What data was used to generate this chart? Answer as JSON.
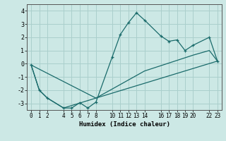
{
  "xlabel": "Humidex (Indice chaleur)",
  "bg_color": "#cce8e5",
  "line_color": "#1a6b6b",
  "grid_color": "#aacfcc",
  "ylim": [
    -3.5,
    4.5
  ],
  "xlim": [
    -0.5,
    23.5
  ],
  "yticks": [
    -3,
    -2,
    -1,
    0,
    1,
    2,
    3,
    4
  ],
  "xticks": [
    0,
    1,
    2,
    4,
    5,
    6,
    7,
    8,
    10,
    11,
    12,
    13,
    14,
    16,
    17,
    18,
    19,
    20,
    22,
    23
  ],
  "line1_x": [
    0,
    1,
    2,
    4,
    5,
    6,
    7,
    8,
    10,
    11,
    12,
    13,
    14,
    16,
    17,
    18,
    19,
    20,
    22,
    23
  ],
  "line1_y": [
    -0.1,
    -2.0,
    -2.6,
    -3.35,
    -3.35,
    -2.95,
    -3.35,
    -2.9,
    0.5,
    2.2,
    3.1,
    3.85,
    3.3,
    2.1,
    1.7,
    1.8,
    1.0,
    1.4,
    2.0,
    0.2
  ],
  "line2_x": [
    0,
    1,
    2,
    4,
    8,
    14,
    20,
    22,
    23
  ],
  "line2_y": [
    -0.1,
    -2.0,
    -2.6,
    -3.35,
    -2.6,
    -0.55,
    0.65,
    1.0,
    0.2
  ],
  "line3_x": [
    0,
    8,
    23
  ],
  "line3_y": [
    -0.1,
    -2.6,
    0.2
  ]
}
